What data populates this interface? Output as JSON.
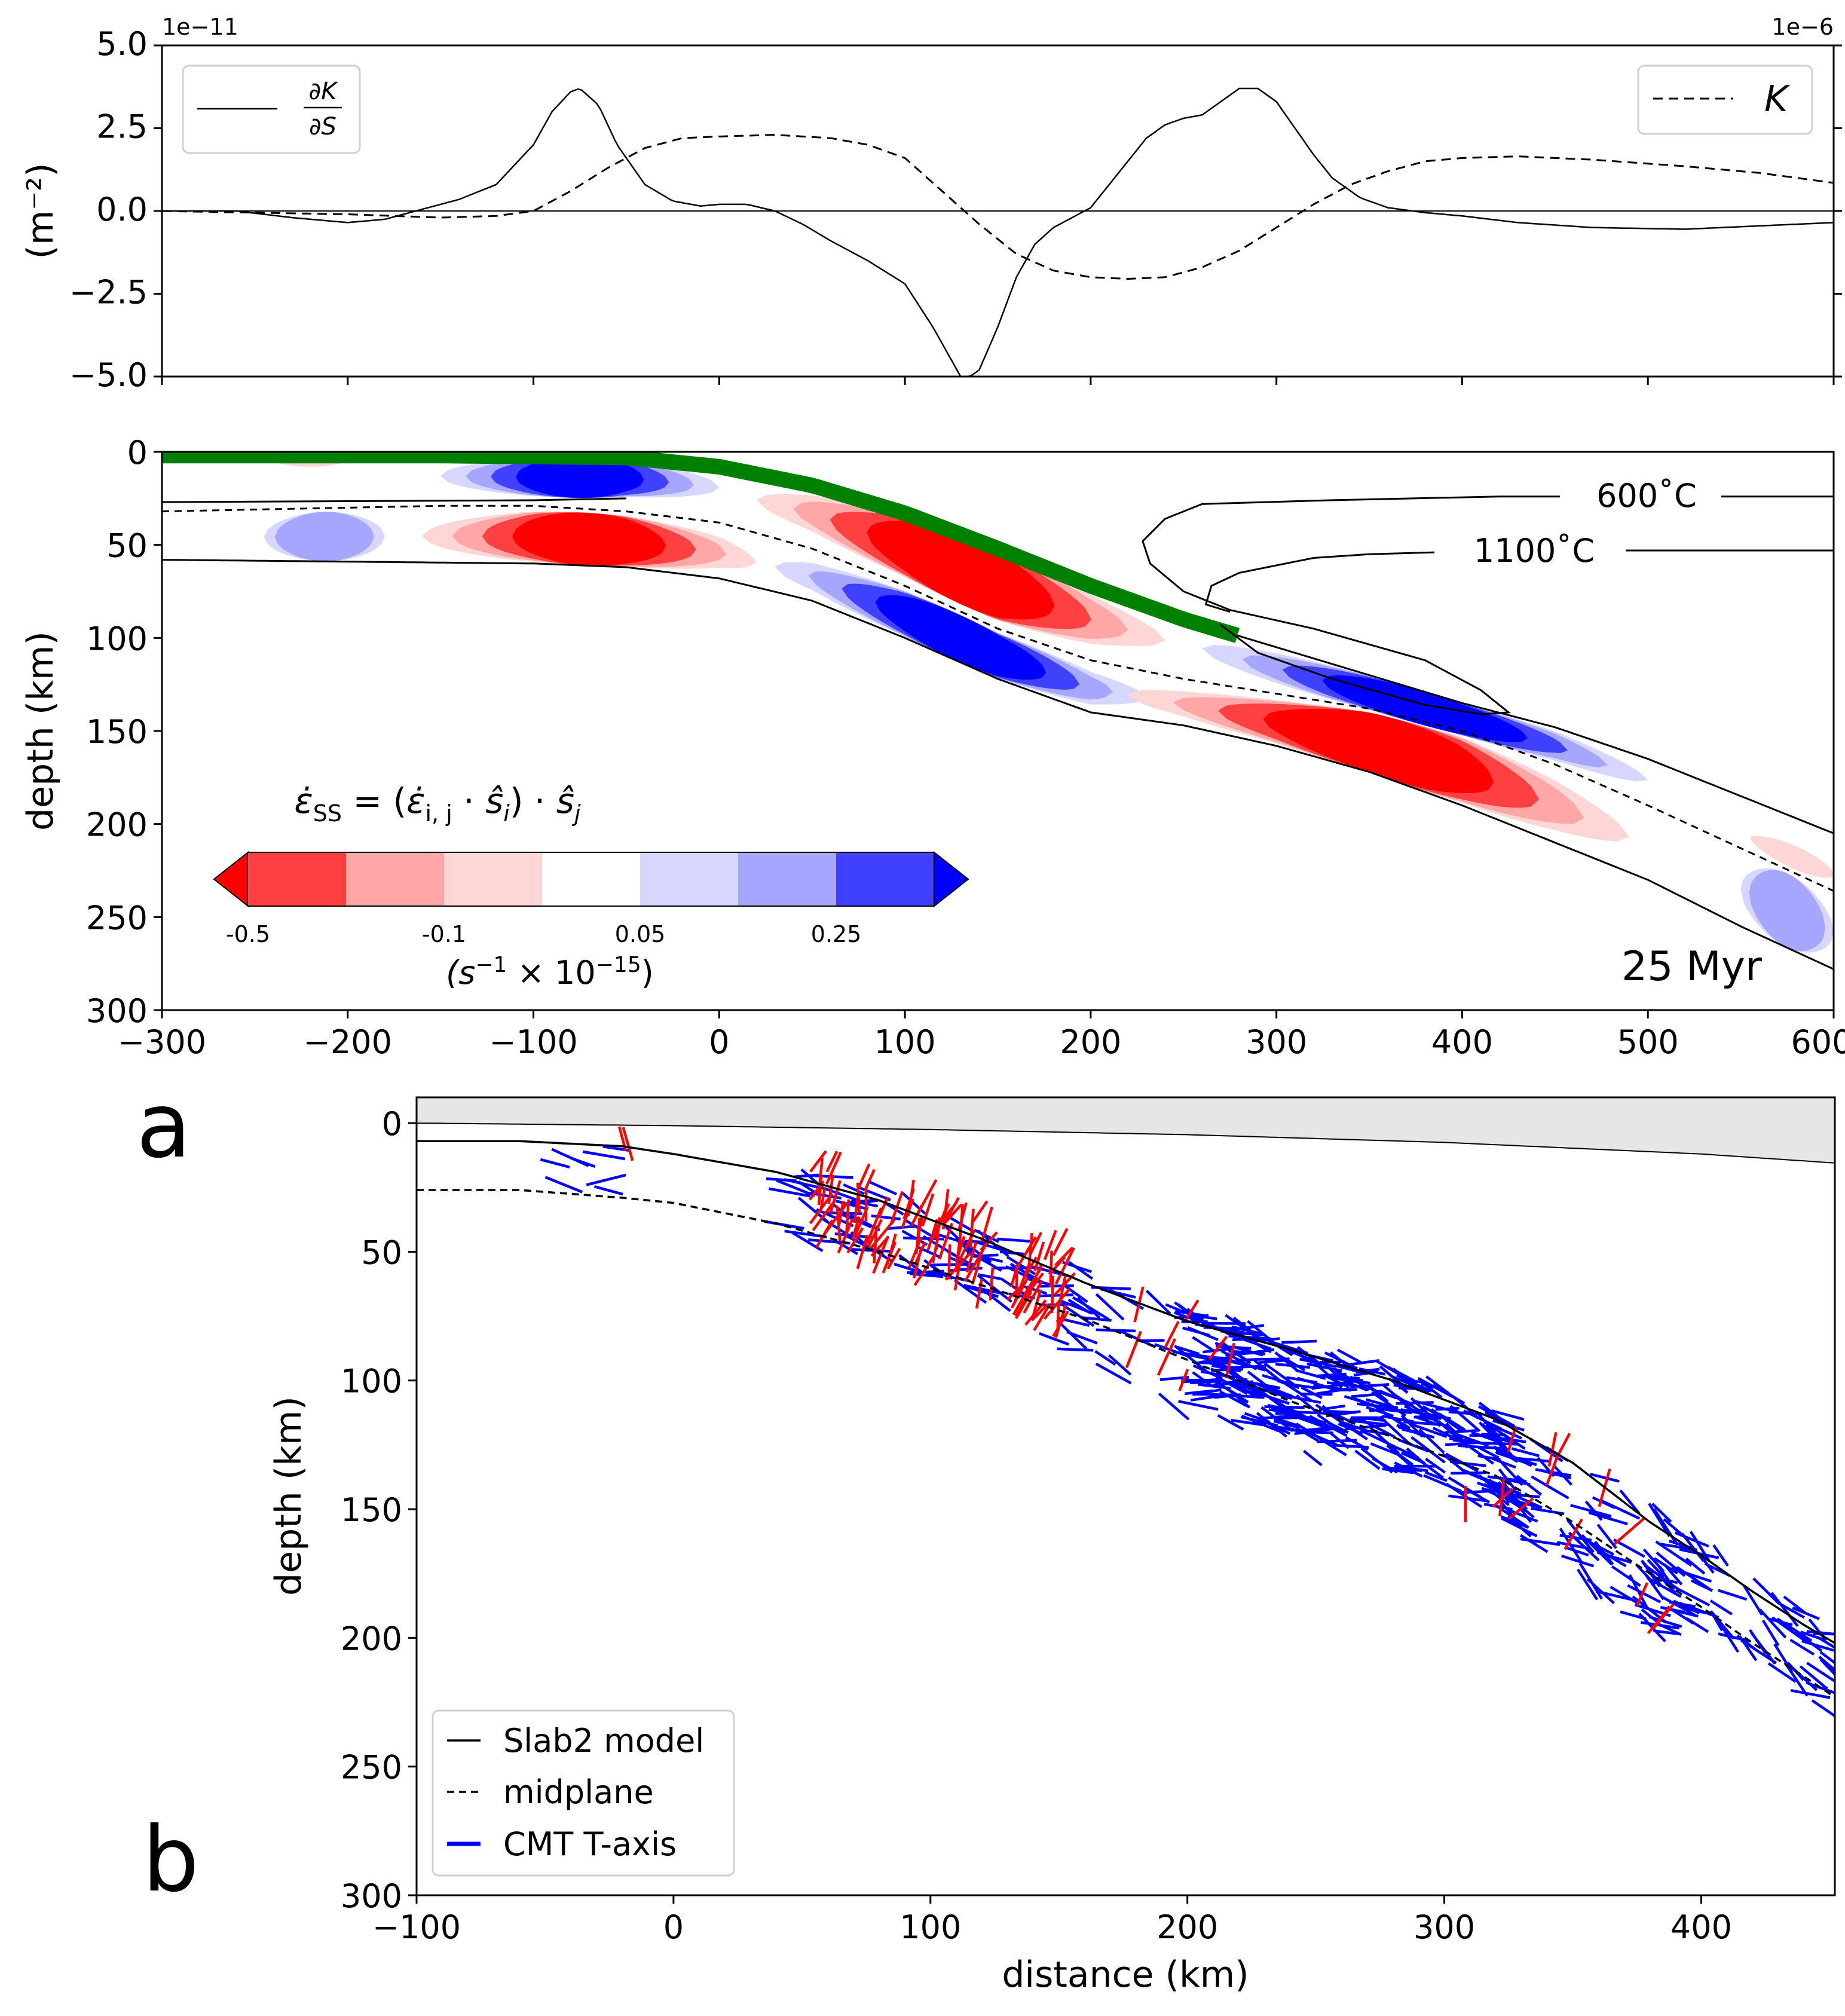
{
  "panel_labels": {
    "a": "a",
    "b": "b"
  },
  "colors": {
    "red_strong": "#ff0000",
    "red_mid": "#ff4040",
    "red_light": "#ffa6a6",
    "red_pale": "#ffd6d6",
    "blue_pale": "#d6d6ff",
    "blue_light": "#a6a6ff",
    "blue_mid": "#4040ff",
    "blue_strong": "#0000ff",
    "green": "#008000",
    "overriding_fill": "#e6e6e6"
  },
  "chart_data": [
    {
      "id": "curvature",
      "type": "line",
      "ylabel": "(m⁻²)",
      "scale_left": "1e−11",
      "scale_right": "1e−6",
      "xlim": [
        -300,
        600
      ],
      "ylim": [
        -5.0,
        5.0
      ],
      "yticks": [
        "5.0",
        "2.5",
        "0.0",
        "−2.5",
        "−5.0"
      ],
      "legend_left": "∂K/∂S",
      "legend_left_num": "∂K",
      "legend_left_den": "∂S",
      "legend_right": "K",
      "series": [
        {
          "name": "∂K/∂S",
          "style": "solid",
          "x": [
            -300,
            -260,
            -230,
            -200,
            -180,
            -160,
            -140,
            -120,
            -100,
            -90,
            -80,
            -75,
            -65,
            -55,
            -40,
            -25,
            -10,
            0,
            15,
            30,
            45,
            60,
            80,
            100,
            115,
            125,
            130,
            135,
            140,
            150,
            160,
            170,
            180,
            190,
            200,
            210,
            220,
            230,
            240,
            250,
            260,
            270,
            280,
            290,
            300,
            310,
            320,
            330,
            345,
            360,
            380,
            400,
            430,
            470,
            520,
            560,
            600
          ],
          "y": [
            0.0,
            0.0,
            -0.2,
            -0.35,
            -0.25,
            0.05,
            0.35,
            0.8,
            2.0,
            3.0,
            3.6,
            3.7,
            3.2,
            2.0,
            0.8,
            0.3,
            0.15,
            0.2,
            0.2,
            0.0,
            -0.4,
            -0.9,
            -1.5,
            -2.2,
            -3.5,
            -4.5,
            -5.0,
            -5.0,
            -4.8,
            -3.5,
            -2.0,
            -1.0,
            -0.5,
            -0.2,
            0.1,
            0.8,
            1.5,
            2.2,
            2.6,
            2.8,
            2.9,
            3.3,
            3.7,
            3.7,
            3.3,
            2.5,
            1.7,
            1.0,
            0.4,
            0.1,
            -0.05,
            -0.15,
            -0.35,
            -0.5,
            -0.55,
            -0.45,
            -0.35
          ]
        },
        {
          "name": "K",
          "style": "dashed",
          "x": [
            -300,
            -200,
            -150,
            -120,
            -100,
            -80,
            -60,
            -40,
            -20,
            0,
            30,
            60,
            80,
            100,
            120,
            140,
            160,
            180,
            200,
            220,
            240,
            260,
            280,
            300,
            320,
            340,
            360,
            380,
            400,
            430,
            470,
            520,
            560,
            600
          ],
          "y": [
            0.0,
            -0.1,
            -0.2,
            -0.15,
            0.0,
            0.6,
            1.3,
            1.9,
            2.2,
            2.25,
            2.3,
            2.2,
            2.0,
            1.6,
            0.6,
            -0.4,
            -1.3,
            -1.8,
            -2.0,
            -2.05,
            -2.0,
            -1.7,
            -1.2,
            -0.5,
            0.2,
            0.8,
            1.2,
            1.5,
            1.6,
            1.65,
            1.55,
            1.35,
            1.15,
            0.85
          ]
        }
      ]
    },
    {
      "id": "strain_rate",
      "type": "heatmap",
      "ylabel": "depth (km)",
      "xlim": [
        -300,
        600
      ],
      "ylim": [
        300,
        0
      ],
      "xticks": [
        "−300",
        "−200",
        "−100",
        "0",
        "100",
        "200",
        "300",
        "400",
        "500",
        "600"
      ],
      "yticks": [
        "0",
        "50",
        "100",
        "150",
        "200",
        "250",
        "300"
      ],
      "isotherm_labels": [
        "600˚C",
        "1100˚C"
      ],
      "time_label": "25 Myr",
      "colorbar_title": "ε̇_SS = (ε̇_i,j · ŝ_i) · ŝ_j",
      "colorbar_title_parts": [
        "ε̇",
        "SS",
        " = (",
        "ε̇",
        "i, j",
        " · ",
        "ŝ",
        "i",
        ") · ",
        "ŝ",
        "j"
      ],
      "colorbar_tick_labels": [
        "-0.5",
        "-0.1",
        "0.05",
        "0.25"
      ],
      "colorbar_unit_parts": [
        "(s",
        "−1",
        " × 10",
        "−15",
        ")"
      ],
      "colorbar_levels": [
        "≤ -0.5",
        "-0.5 to -0.25",
        "-0.25 to -0.1",
        "-0.1 to 0.05",
        "0.05 to 0.1",
        "0.1 to 0.25",
        "0.25 to 0.5",
        "≥ 0.5"
      ],
      "slab_top": {
        "x": [
          -300,
          -150,
          -50,
          0,
          50,
          100,
          150,
          200,
          250,
          300,
          350,
          400,
          450,
          500,
          550,
          600
        ],
        "y": [
          2,
          2,
          3,
          8,
          18,
          33,
          52,
          72,
          90,
          105,
          120,
          135,
          148,
          165,
          185,
          205
        ]
      },
      "midplane": {
        "x": [
          -300,
          -150,
          -100,
          -50,
          0,
          50,
          100,
          150,
          200,
          250,
          300,
          350,
          400,
          450,
          500,
          550,
          600
        ],
        "y": [
          32,
          29,
          29,
          32,
          38,
          52,
          72,
          95,
          112,
          122,
          130,
          138,
          150,
          168,
          190,
          213,
          236
        ]
      },
      "slab_bottom": {
        "x": [
          -300,
          -200,
          -100,
          -50,
          0,
          50,
          100,
          150,
          200,
          250,
          300,
          350,
          400,
          450,
          500,
          550,
          600
        ],
        "y": [
          58,
          59,
          60,
          62,
          68,
          80,
          100,
          122,
          140,
          147,
          158,
          172,
          190,
          210,
          230,
          255,
          278
        ]
      }
    },
    {
      "id": "cmt_taxes",
      "type": "scatter",
      "xlabel": "distance (km)",
      "ylabel": "depth (km)",
      "xlim": [
        -100,
        452
      ],
      "ylim": [
        300,
        -10
      ],
      "xticks": [
        "−100",
        "0",
        "100",
        "200",
        "300",
        "400"
      ],
      "yticks": [
        "0",
        "50",
        "100",
        "150",
        "200",
        "250",
        "300"
      ],
      "legend": [
        "Slab2 model",
        "midplane",
        "CMT T-axis"
      ],
      "series_colors": {
        "downdip": "#ff0000",
        "cmt": "#0000ff"
      },
      "overriding_surface": {
        "x": [
          -100,
          0,
          100,
          200,
          300,
          400,
          452
        ],
        "y": [
          0,
          1,
          2.5,
          4.5,
          7.5,
          12,
          15.5
        ]
      },
      "slab2": {
        "x": [
          -100,
          -60,
          -20,
          0,
          40,
          80,
          120,
          160,
          200,
          240,
          280,
          320,
          350,
          380,
          400,
          420,
          440,
          452
        ],
        "y": [
          7,
          7,
          9,
          12,
          19,
          30,
          45,
          62,
          77,
          88,
          100,
          115,
          132,
          155,
          168,
          182,
          195,
          202
        ]
      },
      "midplane": {
        "x": [
          -100,
          -60,
          -20,
          0,
          40,
          80,
          120,
          160,
          200,
          240,
          280,
          320,
          350,
          380,
          400,
          420,
          440,
          452
        ],
        "y": [
          26,
          26,
          29,
          31,
          39,
          50,
          63,
          76,
          92,
          108,
          122,
          137,
          155,
          175,
          188,
          202,
          215,
          223
        ]
      },
      "cluster_centers": [
        [
          -20,
          15
        ],
        [
          70,
          30
        ],
        [
          110,
          45
        ],
        [
          130,
          55
        ],
        [
          100,
          65
        ],
        [
          150,
          80
        ],
        [
          240,
          100
        ],
        [
          270,
          110
        ],
        [
          300,
          120
        ],
        [
          260,
          130
        ],
        [
          330,
          150
        ],
        [
          360,
          165
        ],
        [
          400,
          195
        ],
        [
          440,
          205
        ],
        [
          420,
          230
        ]
      ]
    }
  ]
}
